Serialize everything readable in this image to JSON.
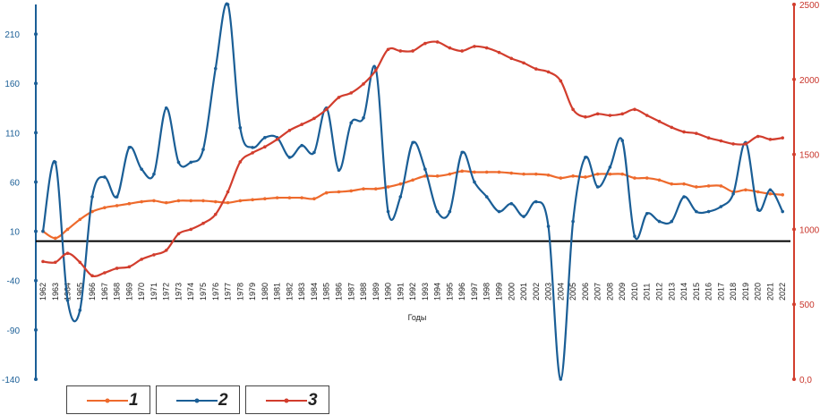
{
  "chart_data": {
    "type": "line",
    "xlabel": "Годы",
    "categories": [
      "1962",
      "1963",
      "1964",
      "1965",
      "1966",
      "1967",
      "1968",
      "1969",
      "1970",
      "1971",
      "1972",
      "1973",
      "1974",
      "1975",
      "1976",
      "1977",
      "1978",
      "1979",
      "1980",
      "1981",
      "1982",
      "1983",
      "1984",
      "1985",
      "1986",
      "1987",
      "1988",
      "1989",
      "1990",
      "1991",
      "1992",
      "1993",
      "1994",
      "1995",
      "1996",
      "1997",
      "1998",
      "1999",
      "2000",
      "2001",
      "2002",
      "2003",
      "2004",
      "2005",
      "2006",
      "2007",
      "2008",
      "2009",
      "2010",
      "2011",
      "2012",
      "2013",
      "2014",
      "2015",
      "2016",
      "2017",
      "2018",
      "2019",
      "2020",
      "2021",
      "2022"
    ],
    "left_axis": {
      "min": -140,
      "max": 240,
      "ticks": [
        -140,
        -90,
        -40,
        10,
        60,
        110,
        160,
        210
      ]
    },
    "right_axis": {
      "min": 0,
      "max": 2500,
      "ticks": [
        "0,0",
        "500",
        "1000",
        "1500",
        "2000",
        "2500"
      ],
      "tick_values": [
        0,
        500,
        1000,
        1500,
        2000,
        2500
      ]
    },
    "zero_line_left_value": 0,
    "series": [
      {
        "name": "1",
        "axis": "left",
        "color": "#ee6a2c",
        "values": [
          10,
          3,
          12,
          22,
          30,
          34,
          36,
          38,
          40,
          41,
          39,
          41,
          41,
          41,
          40,
          39,
          41,
          42,
          43,
          44,
          44,
          44,
          43,
          49,
          50,
          51,
          53,
          53,
          55,
          58,
          62,
          66,
          66,
          68,
          71,
          70,
          70,
          70,
          69,
          68,
          68,
          67,
          64,
          66,
          65,
          68,
          68,
          68,
          64,
          64,
          62,
          58,
          58,
          55,
          56,
          56,
          50,
          52,
          50,
          48,
          47
        ]
      },
      {
        "name": "2",
        "axis": "left",
        "color": "#1a5e96",
        "values": [
          10,
          80,
          -60,
          -70,
          45,
          65,
          45,
          95,
          73,
          68,
          135,
          80,
          80,
          93,
          175,
          240,
          115,
          95,
          105,
          105,
          85,
          97,
          90,
          135,
          72,
          120,
          125,
          175,
          30,
          45,
          100,
          73,
          30,
          30,
          90,
          60,
          45,
          30,
          38,
          25,
          40,
          15,
          -140,
          20,
          85,
          55,
          75,
          102,
          5,
          28,
          20,
          20,
          45,
          30,
          30,
          35,
          48,
          100,
          32,
          52,
          30
        ]
      },
      {
        "name": "3",
        "axis": "right",
        "color": "#d23d2d",
        "values": [
          785,
          780,
          840,
          780,
          690,
          710,
          740,
          750,
          800,
          830,
          860,
          970,
          1000,
          1040,
          1100,
          1250,
          1450,
          1510,
          1550,
          1600,
          1660,
          1700,
          1740,
          1800,
          1880,
          1910,
          1970,
          2060,
          2200,
          2190,
          2190,
          2240,
          2250,
          2210,
          2190,
          2220,
          2210,
          2180,
          2140,
          2110,
          2070,
          2050,
          1990,
          1800,
          1750,
          1770,
          1760,
          1770,
          1800,
          1760,
          1720,
          1680,
          1650,
          1640,
          1610,
          1590,
          1570,
          1570,
          1620,
          1600,
          1610
        ]
      }
    ],
    "legend": [
      "1",
      "2",
      "3"
    ],
    "legend_placement": "bottom-left"
  }
}
